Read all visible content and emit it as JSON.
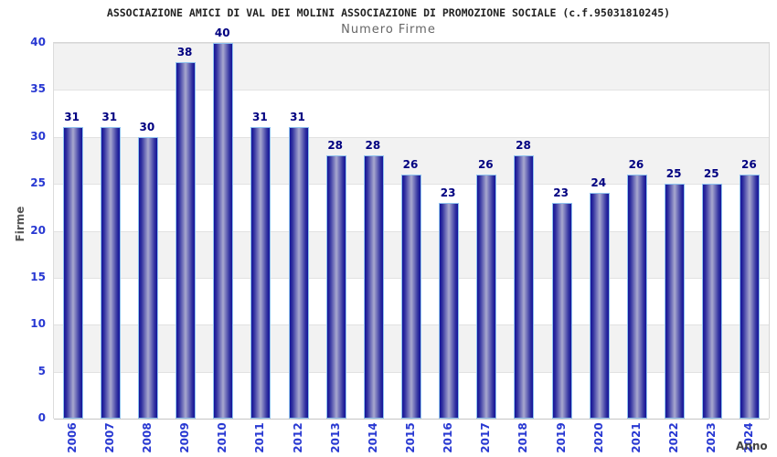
{
  "chart_data": {
    "type": "bar",
    "title": "ASSOCIAZIONE AMICI DI VAL DEI MOLINI ASSOCIAZIONE DI PROMOZIONE SOCIALE (c.f.95031810245)",
    "subtitle": "Numero Firme",
    "ylabel": "Firme",
    "xlabel": "Anno",
    "categories": [
      "2006",
      "2007",
      "2008",
      "2009",
      "2010",
      "2011",
      "2012",
      "2013",
      "2014",
      "2015",
      "2016",
      "2017",
      "2018",
      "2019",
      "2020",
      "2021",
      "2022",
      "2023",
      "2024"
    ],
    "values": [
      31,
      31,
      30,
      38,
      40,
      31,
      31,
      28,
      28,
      26,
      23,
      26,
      28,
      23,
      24,
      26,
      25,
      25,
      26
    ],
    "ylim": [
      0,
      40
    ],
    "ytick_step": 5,
    "yticks": [
      0,
      5,
      10,
      15,
      20,
      25,
      30,
      35,
      40
    ],
    "grid": "alternating horizontal gray/white bands every 5 units, light gridlines at each tick",
    "legend": "none",
    "colors": {
      "bar_edge": "#14149a",
      "bar_center": "#a8a8ce",
      "bar_border": "#8fc2ee",
      "tick_label": "#2838d2",
      "value_label": "#000080",
      "band_gray": "#f2f2f2",
      "title": "#222222",
      "subtitle": "#666666",
      "axis_title": "#555555",
      "background": "#ffffff"
    }
  }
}
